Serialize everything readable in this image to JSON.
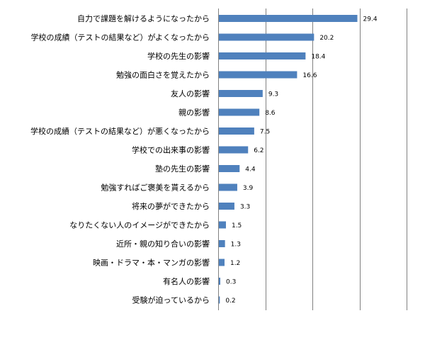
{
  "chart_data": {
    "type": "bar",
    "orientation": "horizontal",
    "categories": [
      "自力で課題を解けるようになったから",
      "学校の成績（テストの結果など）がよくなったから",
      "学校の先生の影響",
      "勉強の面白さを覚えたから",
      "友人の影響",
      "親の影響",
      "学校の成績（テストの結果など）が悪くなったから",
      "学校での出来事の影響",
      "塾の先生の影響",
      "勉強すればご褒美を貰えるから",
      "将来の夢ができたから",
      "なりたくない人のイメージができたから",
      "近所・親の知り合いの影響",
      "映画・ドラマ・本・マンガの影響",
      "有名人の影響",
      "受験が迫っているから"
    ],
    "values": [
      29.4,
      20.2,
      18.4,
      16.6,
      9.3,
      8.6,
      7.5,
      6.2,
      4.4,
      3.9,
      3.3,
      1.5,
      1.3,
      1.2,
      0.3,
      0.2
    ],
    "value_labels": [
      "29.4",
      "20.2",
      "18.4",
      "16.6",
      "9.3",
      "8.6",
      "7.5",
      "6.2",
      "4.4",
      "3.9",
      "3.3",
      "1.5",
      "1.3",
      "1.2",
      "0.3",
      "0.2"
    ],
    "xlim": [
      0,
      40
    ],
    "x_gridlines": [
      0,
      10,
      20,
      30,
      40
    ],
    "grid": true,
    "legend": "none",
    "title": "",
    "xlabel": "",
    "ylabel": "",
    "bar_color": "#4F81BD",
    "gridline_color": "#808080"
  }
}
